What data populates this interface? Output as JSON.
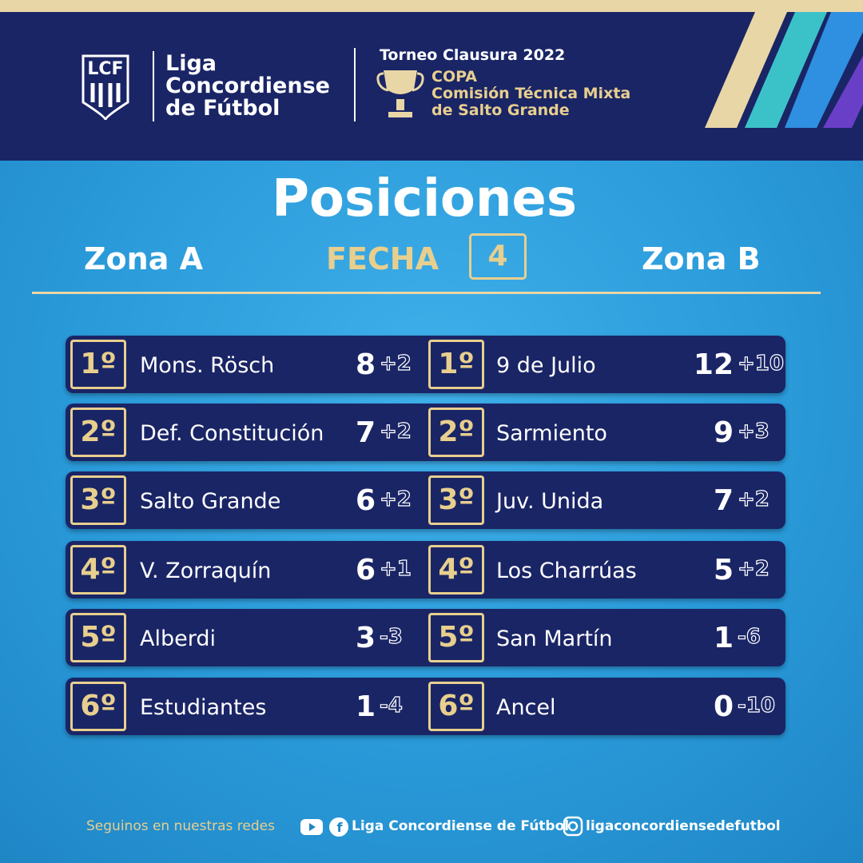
{
  "header": {
    "logo": "LCF",
    "league": [
      "Liga",
      "Concordiense",
      "de Fútbol"
    ],
    "tournament": "Torneo Clausura 2022",
    "cup": [
      "COPA",
      "Comisión Técnica Mixta",
      "de Salto Grande"
    ]
  },
  "title": "Posiciones",
  "round": {
    "label": "FECHA",
    "number": "4"
  },
  "zones": [
    {
      "name": "Zona A",
      "rows": [
        [
          "1º",
          "Mons. Rösch",
          "8",
          "+2"
        ],
        [
          "2º",
          "Def. Constitución",
          "7",
          "+2"
        ],
        [
          "3º",
          "Salto Grande",
          "6",
          "+2"
        ],
        [
          "4º",
          "V. Zorraquín",
          "6",
          "+1"
        ],
        [
          "5º",
          "Alberdi",
          "3",
          "-3"
        ],
        [
          "6º",
          "Estudiantes",
          "1",
          "-4"
        ]
      ]
    },
    {
      "name": "Zona B",
      "rows": [
        [
          "1º",
          "9 de Julio",
          "12",
          "+10"
        ],
        [
          "2º",
          "Sarmiento",
          "9",
          "+3"
        ],
        [
          "3º",
          "Juv. Unida",
          "7",
          "+2"
        ],
        [
          "4º",
          "Los Charrúas",
          "5",
          "+2"
        ],
        [
          "5º",
          "San Martín",
          "1",
          "-6"
        ],
        [
          "6º",
          "Ancel",
          "0",
          "-10"
        ]
      ]
    }
  ],
  "footer": {
    "text": "Seguinos en nuestras redes",
    "facebook": "Liga Concordiense de Fútbol",
    "instagram": "ligaconcordiensedefutbol"
  }
}
